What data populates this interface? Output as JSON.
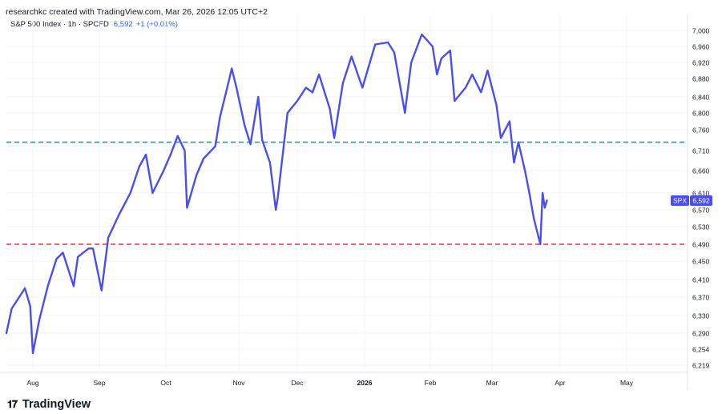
{
  "header": {
    "title": "researchkc created with TradingView.com, Mar 26, 2026 12:05 UTC+2"
  },
  "legend": {
    "symbol": "S&P 500 Index · 1h · SPCFD",
    "last": "6,592",
    "change": "+1 (+0.01%)"
  },
  "branding": {
    "logo_text": "TradingView",
    "logo_icon": "tradingview-logo-icon"
  },
  "price_tag": {
    "symbol": "SPX",
    "value": "6,592",
    "color": "#4a4ef0"
  },
  "colors": {
    "line": "#4a4ef0",
    "support": "#f0334d",
    "resistance": "#26a08c",
    "grid": "#f0f3fa"
  },
  "chart_data": {
    "type": "line",
    "title": "",
    "xlabel": "",
    "ylabel": "",
    "grid": true,
    "y_ticks": [
      "7,000",
      "6,960",
      "6,920",
      "6,880",
      "6,840",
      "6,800",
      "6,760",
      "6,710",
      "6,660",
      "6,610",
      "6,570",
      "6,530",
      "6,490",
      "6,450",
      "6,410",
      "6,370",
      "6,330",
      "6,290",
      "6,254",
      "6,219"
    ],
    "x_ticks": [
      "Aug",
      "Sep",
      "Oct",
      "Nov",
      "Dec",
      "2026",
      "Feb",
      "Mar",
      "Apr",
      "May"
    ],
    "hlines": [
      {
        "name": "resistance",
        "value": 6730,
        "style": "dashed",
        "color": "#26a08c"
      },
      {
        "name": "support",
        "value": 6490,
        "style": "dashed",
        "color": "#f0334d"
      }
    ],
    "series": [
      {
        "values": [
          [
            "2025-07-22",
            6290
          ],
          [
            "2025-07-24",
            6345
          ],
          [
            "2025-07-29",
            6390
          ],
          [
            "2025-07-31",
            6350
          ],
          [
            "2025-08-01",
            6245
          ],
          [
            "2025-08-04",
            6320
          ],
          [
            "2025-08-08",
            6395
          ],
          [
            "2025-08-12",
            6455
          ],
          [
            "2025-08-15",
            6470
          ],
          [
            "2025-08-20",
            6395
          ],
          [
            "2025-08-22",
            6460
          ],
          [
            "2025-08-27",
            6480
          ],
          [
            "2025-08-29",
            6480
          ],
          [
            "2025-09-02",
            6385
          ],
          [
            "2025-09-05",
            6505
          ],
          [
            "2025-09-10",
            6560
          ],
          [
            "2025-09-15",
            6610
          ],
          [
            "2025-09-19",
            6670
          ],
          [
            "2025-09-22",
            6700
          ],
          [
            "2025-09-25",
            6610
          ],
          [
            "2025-09-30",
            6660
          ],
          [
            "2025-10-03",
            6700
          ],
          [
            "2025-10-06",
            6745
          ],
          [
            "2025-10-09",
            6710
          ],
          [
            "2025-10-10",
            6575
          ],
          [
            "2025-10-14",
            6650
          ],
          [
            "2025-10-17",
            6690
          ],
          [
            "2025-10-22",
            6720
          ],
          [
            "2025-10-24",
            6790
          ],
          [
            "2025-10-28",
            6880
          ],
          [
            "2025-10-29",
            6905
          ],
          [
            "2025-10-31",
            6860
          ],
          [
            "2025-11-04",
            6770
          ],
          [
            "2025-11-07",
            6725
          ],
          [
            "2025-11-11",
            6840
          ],
          [
            "2025-11-13",
            6735
          ],
          [
            "2025-11-17",
            6680
          ],
          [
            "2025-11-20",
            6570
          ],
          [
            "2025-11-21",
            6600
          ],
          [
            "2025-11-26",
            6800
          ],
          [
            "2025-12-01",
            6830
          ],
          [
            "2025-12-05",
            6860
          ],
          [
            "2025-12-08",
            6850
          ],
          [
            "2025-12-11",
            6890
          ],
          [
            "2025-12-16",
            6810
          ],
          [
            "2025-12-18",
            6740
          ],
          [
            "2025-12-22",
            6870
          ],
          [
            "2025-12-26",
            6935
          ],
          [
            "2025-12-31",
            6860
          ],
          [
            "2026-01-06",
            6965
          ],
          [
            "2026-01-12",
            6970
          ],
          [
            "2026-01-15",
            6945
          ],
          [
            "2026-01-20",
            6800
          ],
          [
            "2026-01-23",
            6920
          ],
          [
            "2026-01-28",
            6990
          ],
          [
            "2026-02-02",
            6960
          ],
          [
            "2026-02-04",
            6890
          ],
          [
            "2026-02-06",
            6930
          ],
          [
            "2026-02-10",
            6950
          ],
          [
            "2026-02-12",
            6830
          ],
          [
            "2026-02-17",
            6860
          ],
          [
            "2026-02-20",
            6890
          ],
          [
            "2026-02-24",
            6850
          ],
          [
            "2026-02-27",
            6900
          ],
          [
            "2026-03-03",
            6820
          ],
          [
            "2026-03-05",
            6740
          ],
          [
            "2026-03-09",
            6780
          ],
          [
            "2026-03-11",
            6680
          ],
          [
            "2026-03-13",
            6730
          ],
          [
            "2026-03-16",
            6660
          ],
          [
            "2026-03-18",
            6610
          ],
          [
            "2026-03-20",
            6550
          ],
          [
            "2026-03-23",
            6490
          ],
          [
            "2026-03-24",
            6610
          ],
          [
            "2026-03-25",
            6575
          ],
          [
            "2026-03-26",
            6592
          ]
        ]
      }
    ]
  }
}
